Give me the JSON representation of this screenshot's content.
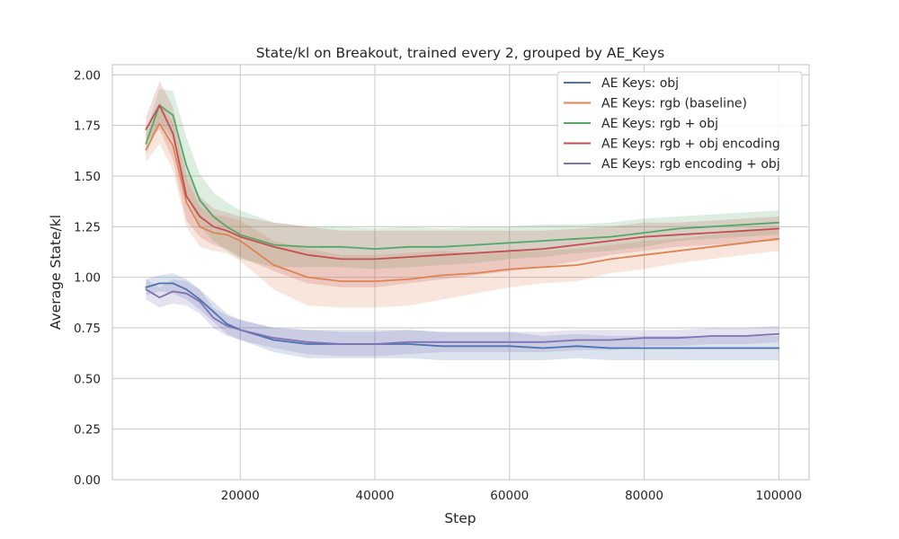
{
  "chart_data": {
    "type": "line",
    "title": "State/kl on Breakout, trained every 2, grouped by AE_Keys",
    "xlabel": "Step",
    "ylabel": "Average State/kl",
    "xlim": [
      1000,
      104500
    ],
    "ylim": [
      0.0,
      2.05
    ],
    "xticks": [
      20000,
      40000,
      60000,
      80000,
      100000
    ],
    "xtick_labels": [
      "20000",
      "40000",
      "60000",
      "80000",
      "100000"
    ],
    "yticks": [
      0.0,
      0.25,
      0.5,
      0.75,
      1.0,
      1.25,
      1.5,
      1.75,
      2.0
    ],
    "ytick_labels": [
      "0.00",
      "0.25",
      "0.50",
      "0.75",
      "1.00",
      "1.25",
      "1.50",
      "1.75",
      "2.00"
    ],
    "grid": true,
    "legend_position": "top-right",
    "x": [
      6000,
      8000,
      10000,
      12000,
      14000,
      16000,
      18000,
      20000,
      25000,
      30000,
      35000,
      40000,
      45000,
      50000,
      55000,
      60000,
      65000,
      70000,
      75000,
      80000,
      85000,
      90000,
      95000,
      100000
    ],
    "series": [
      {
        "name": "AE Keys: obj",
        "color": "#4c72b0",
        "values": [
          0.95,
          0.97,
          0.97,
          0.94,
          0.89,
          0.83,
          0.77,
          0.74,
          0.69,
          0.67,
          0.67,
          0.67,
          0.67,
          0.66,
          0.66,
          0.66,
          0.65,
          0.66,
          0.65,
          0.65,
          0.65,
          0.65,
          0.65,
          0.65
        ],
        "band": [
          0.04,
          0.04,
          0.05,
          0.05,
          0.05,
          0.05,
          0.05,
          0.05,
          0.06,
          0.07,
          0.07,
          0.07,
          0.07,
          0.07,
          0.07,
          0.07,
          0.06,
          0.06,
          0.06,
          0.06,
          0.06,
          0.06,
          0.06,
          0.06
        ]
      },
      {
        "name": "AE Keys: rgb (baseline)",
        "color": "#dd8452",
        "values": [
          1.63,
          1.76,
          1.65,
          1.37,
          1.25,
          1.22,
          1.21,
          1.18,
          1.06,
          1.0,
          0.98,
          0.98,
          0.99,
          1.01,
          1.02,
          1.04,
          1.05,
          1.06,
          1.09,
          1.11,
          1.13,
          1.15,
          1.17,
          1.19
        ],
        "band": [
          0.06,
          0.1,
          0.12,
          0.12,
          0.1,
          0.09,
          0.09,
          0.1,
          0.12,
          0.14,
          0.13,
          0.13,
          0.13,
          0.12,
          0.1,
          0.09,
          0.08,
          0.08,
          0.07,
          0.07,
          0.06,
          0.06,
          0.06,
          0.06
        ]
      },
      {
        "name": "AE Keys: rgb + obj",
        "color": "#55a868",
        "values": [
          1.66,
          1.85,
          1.8,
          1.55,
          1.38,
          1.3,
          1.25,
          1.21,
          1.16,
          1.15,
          1.15,
          1.14,
          1.15,
          1.15,
          1.16,
          1.17,
          1.18,
          1.19,
          1.2,
          1.22,
          1.24,
          1.25,
          1.26,
          1.27
        ],
        "band": [
          0.06,
          0.08,
          0.12,
          0.14,
          0.13,
          0.12,
          0.12,
          0.12,
          0.11,
          0.1,
          0.1,
          0.1,
          0.1,
          0.09,
          0.09,
          0.08,
          0.08,
          0.07,
          0.07,
          0.07,
          0.06,
          0.06,
          0.06,
          0.06
        ]
      },
      {
        "name": "AE Keys: rgb + obj encoding",
        "color": "#c44e52",
        "values": [
          1.73,
          1.85,
          1.71,
          1.4,
          1.3,
          1.25,
          1.23,
          1.2,
          1.15,
          1.11,
          1.09,
          1.09,
          1.1,
          1.11,
          1.12,
          1.13,
          1.14,
          1.16,
          1.18,
          1.2,
          1.21,
          1.22,
          1.23,
          1.24
        ],
        "band": [
          0.06,
          0.12,
          0.13,
          0.12,
          0.1,
          0.09,
          0.09,
          0.1,
          0.12,
          0.14,
          0.14,
          0.14,
          0.13,
          0.12,
          0.11,
          0.1,
          0.09,
          0.08,
          0.07,
          0.07,
          0.06,
          0.06,
          0.06,
          0.06
        ]
      },
      {
        "name": "AE Keys: rgb encoding + obj",
        "color": "#8172b3",
        "values": [
          0.94,
          0.9,
          0.93,
          0.92,
          0.88,
          0.8,
          0.76,
          0.74,
          0.7,
          0.68,
          0.67,
          0.67,
          0.68,
          0.68,
          0.68,
          0.68,
          0.68,
          0.69,
          0.69,
          0.7,
          0.7,
          0.71,
          0.71,
          0.72
        ],
        "band": [
          0.05,
          0.05,
          0.06,
          0.06,
          0.06,
          0.05,
          0.05,
          0.05,
          0.05,
          0.06,
          0.06,
          0.06,
          0.06,
          0.05,
          0.05,
          0.05,
          0.05,
          0.05,
          0.05,
          0.04,
          0.04,
          0.04,
          0.04,
          0.04
        ]
      }
    ]
  }
}
